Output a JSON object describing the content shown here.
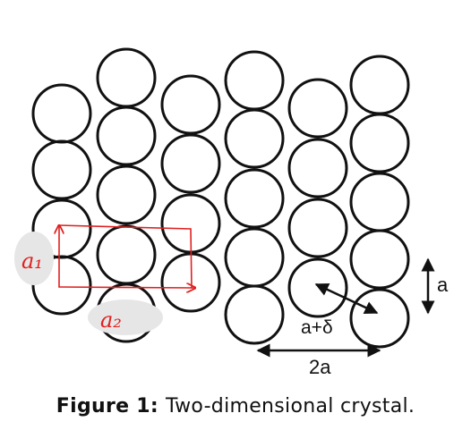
{
  "figure": {
    "caption_label": "Figure 1:",
    "caption_text": "Two-dimensional crystal."
  },
  "annotations": {
    "lattice_constant": "a",
    "diagonal_spacing": "a+δ",
    "column_pair_spacing": "2a",
    "vector_1": "a₁",
    "vector_2": "a₂"
  },
  "colors": {
    "atom_stroke": "#111111",
    "handwriting": "#e02020",
    "text": "#111111",
    "background": "#ffffff"
  }
}
